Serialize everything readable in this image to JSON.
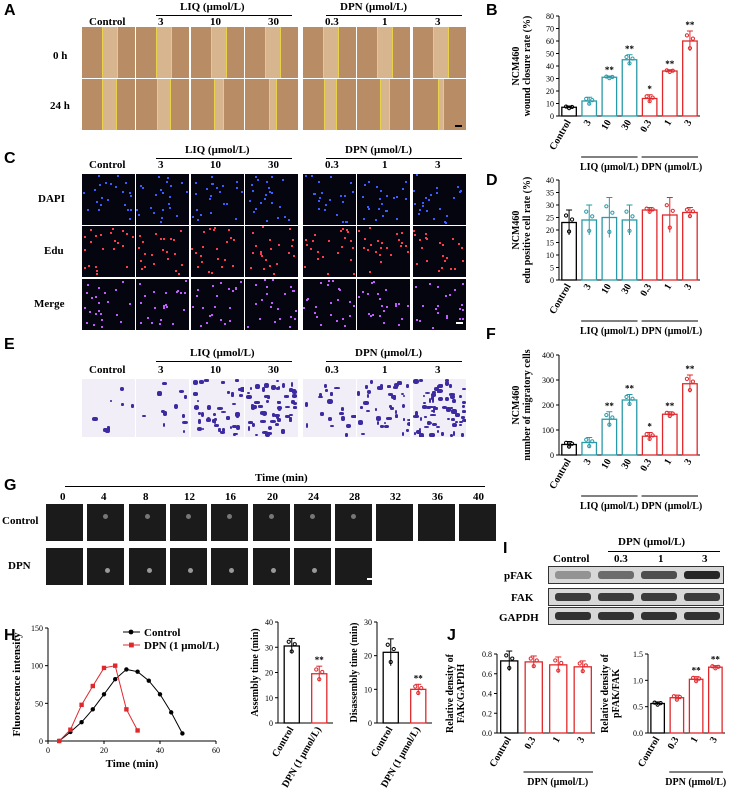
{
  "panels": {
    "A": "A",
    "B": "B",
    "C": "C",
    "D": "D",
    "E": "E",
    "F": "F",
    "G": "G",
    "H": "H",
    "I": "I",
    "J": "J"
  },
  "groups": {
    "control": "Control",
    "liq": "LIQ (μmol/L)",
    "dpn": "DPN (μmol/L)"
  },
  "doses": {
    "liq": [
      "3",
      "10",
      "30"
    ],
    "dpn": [
      "0.3",
      "1",
      "3"
    ]
  },
  "panelA": {
    "rows": [
      "0 h",
      "24 h"
    ]
  },
  "panelC": {
    "rows": [
      "DAPI",
      "Edu",
      "Merge"
    ]
  },
  "panelG": {
    "time_title": "Time (min)",
    "times": [
      "0",
      "4",
      "8",
      "12",
      "16",
      "20",
      "24",
      "28",
      "32",
      "36",
      "40"
    ],
    "rows": [
      "Control",
      "DPN"
    ]
  },
  "panelI": {
    "rows": [
      "pFAK",
      "FAK",
      "GAPDH"
    ],
    "header": "DPN (μmol/L)",
    "lanes": [
      "Control",
      "0.3",
      "1",
      "3"
    ]
  },
  "sig": {
    "star1": "*",
    "star2": "**"
  },
  "colors": {
    "control": "#000000",
    "liq": "#1a8a9a",
    "dpn": "#e0282c",
    "liq_stroke": "#2a9aa8"
  },
  "chart_data": [
    {
      "id": "B",
      "type": "bar",
      "ylabel": "NCM460\nwound closure rate (%)",
      "ylabel_lines": [
        "NCM460",
        "wound closure rate (%)"
      ],
      "categories": [
        "Control",
        "3",
        "10",
        "30",
        "0.3",
        "1",
        "3"
      ],
      "values": [
        7,
        12,
        31,
        45,
        14,
        36,
        60
      ],
      "errors": [
        1,
        3,
        1,
        4,
        3,
        1,
        8
      ],
      "sig": [
        "",
        "",
        "**",
        "**",
        "*",
        "**",
        "**"
      ],
      "ylim": [
        0,
        80
      ],
      "yticks": [
        "0",
        "10",
        "20",
        "30",
        "40",
        "50",
        "60",
        "70",
        "80"
      ],
      "group_labels": [
        "LIQ (μmol/L)",
        "DPN (μmol/L)"
      ]
    },
    {
      "id": "D",
      "type": "bar",
      "ylabel_lines": [
        "NCM460",
        "edu positive cell rate (%)"
      ],
      "categories": [
        "Control",
        "3",
        "10",
        "30",
        "0.3",
        "1",
        "3"
      ],
      "values": [
        23,
        24,
        25,
        24,
        28,
        26,
        27
      ],
      "errors": [
        5,
        6,
        8,
        6,
        1,
        7,
        2
      ],
      "sig": [
        "",
        "",
        "",
        "",
        "",
        "",
        ""
      ],
      "ylim": [
        0,
        40
      ],
      "yticks": [
        "0",
        "5",
        "10",
        "15",
        "20",
        "25",
        "30",
        "35",
        "40"
      ],
      "group_labels": [
        "LIQ (μmol/L)",
        "DPN (μmol/L)"
      ]
    },
    {
      "id": "F",
      "type": "bar",
      "ylabel_lines": [
        "NCM460",
        "number of migratory cells"
      ],
      "categories": [
        "Control",
        "3",
        "10",
        "30",
        "0.3",
        "1",
        "3"
      ],
      "values": [
        42,
        50,
        143,
        220,
        75,
        163,
        285
      ],
      "errors": [
        12,
        20,
        30,
        22,
        15,
        10,
        35
      ],
      "sig": [
        "",
        "",
        "**",
        "**",
        "*",
        "**",
        "**"
      ],
      "ylim": [
        0,
        400
      ],
      "yticks": [
        "0",
        "100",
        "200",
        "300",
        "400"
      ],
      "group_labels": [
        "LIQ (μmol/L)",
        "DPN (μmol/L)"
      ]
    },
    {
      "id": "H1",
      "type": "line",
      "xlabel": "Time (min)",
      "ylabel": "Fluorescence intensity",
      "xlim": [
        0,
        60
      ],
      "ylim": [
        0,
        150
      ],
      "xticks": [
        "0",
        "20",
        "40",
        "60"
      ],
      "yticks": [
        "0",
        "50",
        "100",
        "150"
      ],
      "series": [
        {
          "name": "Control",
          "x": [
            4,
            8,
            12,
            16,
            20,
            24,
            28,
            32,
            36,
            40,
            44,
            48
          ],
          "y": [
            0,
            12,
            25,
            42,
            62,
            82,
            95,
            92,
            80,
            62,
            38,
            10
          ]
        },
        {
          "name": "DPN (1 μmol/L)",
          "x": [
            4,
            8,
            12,
            16,
            20,
            24,
            28,
            32
          ],
          "y": [
            0,
            15,
            48,
            73,
            97,
            100,
            42,
            14
          ]
        }
      ]
    },
    {
      "id": "H2",
      "type": "bar",
      "ylabel": "Assembly time (min)",
      "categories": [
        "Control",
        "DPN (1 μmol/L)"
      ],
      "values": [
        30.5,
        19.5
      ],
      "errors": [
        3,
        3
      ],
      "sig": [
        "",
        "**"
      ],
      "ylim": [
        0,
        40
      ],
      "yticks": [
        "0",
        "10",
        "20",
        "30",
        "40"
      ]
    },
    {
      "id": "H3",
      "type": "bar",
      "ylabel": "Disassembly time (min)",
      "categories": [
        "Control",
        "DPN (1 μmol/L)"
      ],
      "values": [
        21,
        10
      ],
      "errors": [
        4,
        1.5
      ],
      "sig": [
        "",
        "**"
      ],
      "ylim": [
        0,
        30
      ],
      "yticks": [
        "0",
        "10",
        "20",
        "30"
      ]
    },
    {
      "id": "J1",
      "type": "bar",
      "ylabel_lines": [
        "Relative density of",
        "FAK/GAPDH"
      ],
      "categories": [
        "Control",
        "0.3",
        "1",
        "3"
      ],
      "values": [
        0.73,
        0.72,
        0.69,
        0.67
      ],
      "errors": [
        0.1,
        0.06,
        0.08,
        0.06
      ],
      "sig": [
        "",
        "",
        "",
        ""
      ],
      "ylim": [
        0,
        0.8
      ],
      "yticks": [
        "0.0",
        "0.2",
        "0.4",
        "0.6",
        "0.8"
      ],
      "group_label": "DPN (μmol/L)"
    },
    {
      "id": "J2",
      "type": "bar",
      "ylabel_lines": [
        "Relative density of",
        "pFAK/FAK"
      ],
      "categories": [
        "Control",
        "0.3",
        "1",
        "3"
      ],
      "values": [
        0.56,
        0.67,
        1.02,
        1.25
      ],
      "errors": [
        0.03,
        0.05,
        0.05,
        0.03
      ],
      "sig": [
        "",
        "",
        "**",
        "**"
      ],
      "ylim": [
        0,
        1.5
      ],
      "yticks": [
        "0.0",
        "0.5",
        "1.0",
        "1.5"
      ],
      "group_label": "DPN (μmol/L)"
    }
  ]
}
